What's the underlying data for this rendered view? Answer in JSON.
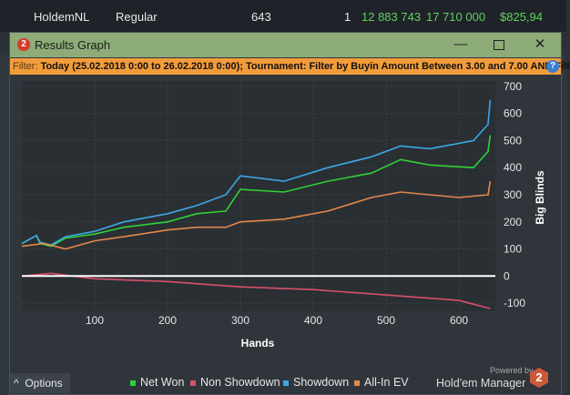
{
  "background_row": {
    "site": "HoldemNL",
    "type": "Regular",
    "hands": "643",
    "count": "1",
    "chips1": "12 883 743",
    "chips2": "17 710 000",
    "amount": "$825,94"
  },
  "window": {
    "logo": "2",
    "title": "Results Graph",
    "minimize": "—",
    "close": "✕"
  },
  "filter": {
    "label": "Filter:",
    "value": "Today (25.02.2018 0:00 to 26.02.2018 0:00); Tournament: Filter by Buyin Amount  Between 3.00 and 7.00 AND Filt",
    "help": "?"
  },
  "chart_data": {
    "type": "line",
    "xlabel": "Hands",
    "ylabel": "Big Blinds",
    "xlim": [
      0,
      650
    ],
    "ylim": [
      -130,
      720
    ],
    "xticks": [
      100,
      200,
      300,
      400,
      500,
      600
    ],
    "yticks": [
      -100,
      0,
      100,
      200,
      300,
      400,
      500,
      600,
      700
    ],
    "grid": true,
    "series": [
      {
        "name": "Net Won",
        "color": "#2fd135",
        "x": [
          0,
          20,
          25,
          40,
          60,
          100,
          140,
          200,
          240,
          280,
          300,
          360,
          420,
          480,
          520,
          560,
          620,
          640,
          643
        ],
        "y": [
          120,
          150,
          120,
          110,
          140,
          155,
          180,
          200,
          230,
          240,
          320,
          310,
          350,
          380,
          430,
          410,
          400,
          460,
          520
        ]
      },
      {
        "name": "Non Showdown",
        "color": "#d94f6a",
        "x": [
          0,
          40,
          100,
          200,
          300,
          400,
          500,
          600,
          643
        ],
        "y": [
          0,
          10,
          -10,
          -20,
          -40,
          -50,
          -70,
          -90,
          -120
        ]
      },
      {
        "name": "Showdown",
        "color": "#3ea7e6",
        "x": [
          0,
          20,
          25,
          40,
          60,
          100,
          140,
          200,
          240,
          280,
          300,
          360,
          420,
          480,
          520,
          560,
          620,
          640,
          643
        ],
        "y": [
          120,
          150,
          125,
          115,
          145,
          165,
          200,
          230,
          260,
          300,
          370,
          350,
          400,
          440,
          480,
          470,
          500,
          560,
          650
        ]
      },
      {
        "name": "All-In EV",
        "color": "#e5884a",
        "x": [
          0,
          30,
          60,
          100,
          140,
          200,
          240,
          280,
          300,
          360,
          420,
          480,
          520,
          560,
          600,
          640,
          643
        ],
        "y": [
          110,
          120,
          100,
          130,
          145,
          170,
          180,
          180,
          200,
          210,
          240,
          290,
          310,
          300,
          290,
          300,
          350
        ]
      }
    ]
  },
  "options": {
    "label": "Options",
    "icon": "^"
  },
  "legend": [
    "Net Won",
    "Non Showdown",
    "Showdown",
    "All-In EV"
  ],
  "branding": {
    "powered": "Powered by",
    "name": "Hold'em Manager",
    "logo": "2"
  }
}
